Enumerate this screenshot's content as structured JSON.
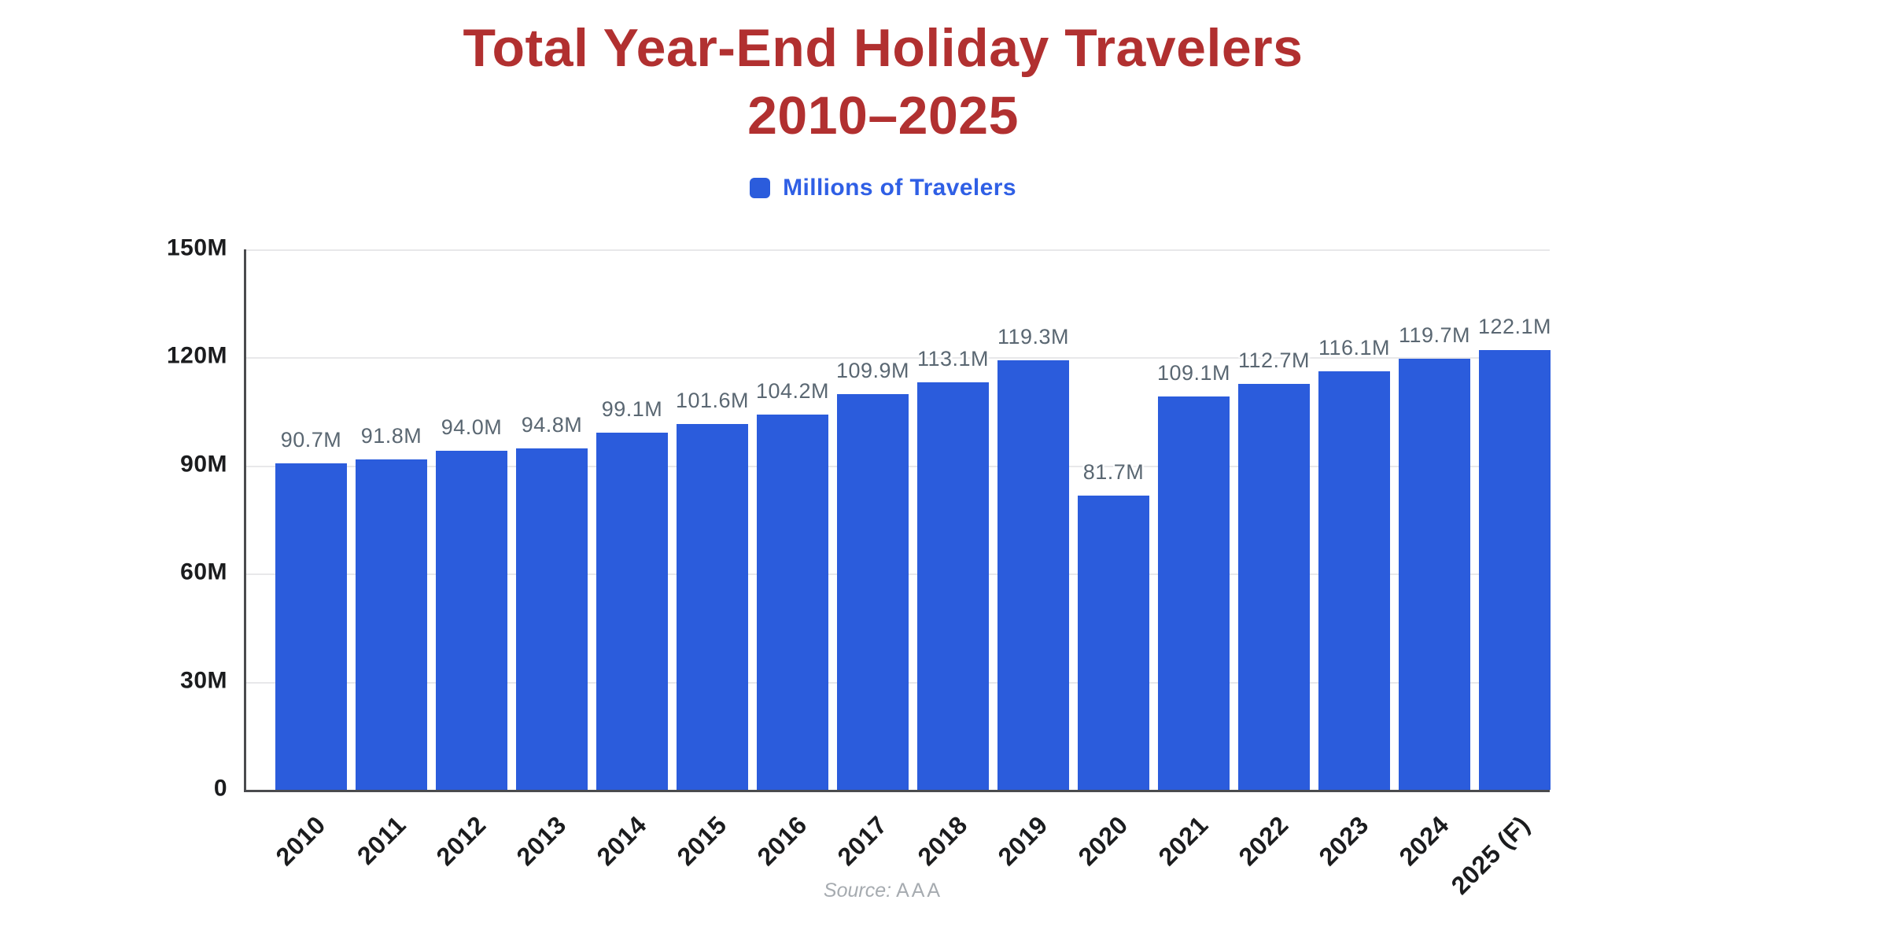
{
  "title": {
    "line1": "Total Year-End Holiday Travelers",
    "line2": "2010–2025"
  },
  "legend": {
    "label": "Millions of Travelers"
  },
  "source": {
    "prefix": "Source:",
    "value": "AAA"
  },
  "colors": {
    "bar": "#2B5CDC",
    "title": "#B13030",
    "legend_text": "#2F5FE5",
    "value_label": "#5A6772",
    "tick_label": "#1B1C1E",
    "axis_line": "#4A4B4E",
    "gridline": "#E8E8EA",
    "source_text": "#A6ABB0"
  },
  "chart_data": {
    "type": "bar",
    "title": "Total Year-End Holiday Travelers 2010–2025",
    "legend": [
      "Millions of Travelers"
    ],
    "legend_position": "top-center",
    "grid": "horizontal",
    "ylim": [
      0,
      150
    ],
    "y_tick_step": 30,
    "y_tick_labels": [
      "0",
      "30M",
      "60M",
      "90M",
      "120M",
      "150M"
    ],
    "xlabel": "",
    "ylabel": "",
    "categories": [
      "2010",
      "2011",
      "2012",
      "2013",
      "2014",
      "2015",
      "2016",
      "2017",
      "2018",
      "2019",
      "2020",
      "2021",
      "2022",
      "2023",
      "2024",
      "2025 (F)"
    ],
    "values": [
      90.7,
      91.8,
      94.0,
      94.8,
      99.1,
      101.6,
      104.2,
      109.9,
      113.1,
      119.3,
      81.7,
      109.1,
      112.7,
      116.1,
      119.7,
      122.1
    ],
    "value_labels": [
      "90.7M",
      "91.8M",
      "94.0M",
      "94.8M",
      "99.1M",
      "101.6M",
      "104.2M",
      "109.9M",
      "113.1M",
      "119.3M",
      "81.7M",
      "109.1M",
      "112.7M",
      "116.1M",
      "119.7M",
      "122.1M"
    ]
  }
}
